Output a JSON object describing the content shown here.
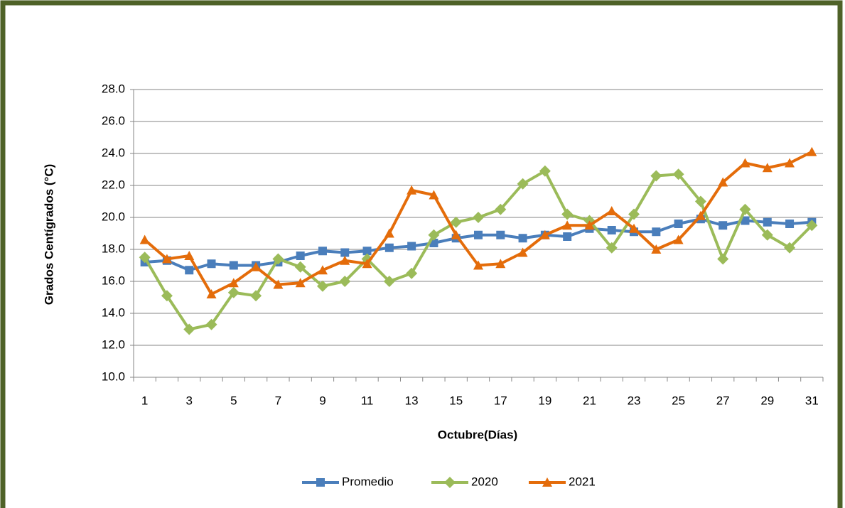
{
  "chart_data": {
    "type": "line",
    "x_label": "Octubre(Días)",
    "y_label": "Grados Centígrados  (°C)",
    "categories": [
      1,
      null,
      3,
      null,
      5,
      null,
      7,
      null,
      9,
      null,
      11,
      null,
      13,
      null,
      15,
      null,
      17,
      null,
      19,
      null,
      21,
      null,
      23,
      null,
      25,
      null,
      27,
      null,
      29,
      null,
      31
    ],
    "ylim": [
      10,
      28
    ],
    "yticks": [
      {
        "value": 10,
        "label": "10.0"
      },
      {
        "value": 12,
        "label": "12.0"
      },
      {
        "value": 14,
        "label": "14.0"
      },
      {
        "value": 16,
        "label": "16.0"
      },
      {
        "value": 18,
        "label": "18.0"
      },
      {
        "value": 20,
        "label": "20.0"
      },
      {
        "value": 22,
        "label": "22.0"
      },
      {
        "value": 24,
        "label": "24.0"
      },
      {
        "value": 26,
        "label": "26.0"
      },
      {
        "value": 28,
        "label": "28.0"
      }
    ],
    "grid": true,
    "legend": "bottom",
    "series": [
      {
        "name": "Promedio",
        "color": "#4a7ebb",
        "marker": "square",
        "values": [
          17.2,
          17.3,
          16.7,
          17.1,
          17.0,
          17.0,
          17.2,
          17.6,
          17.9,
          17.8,
          17.9,
          18.1,
          18.2,
          18.4,
          18.7,
          18.9,
          18.9,
          18.7,
          18.9,
          18.8,
          19.3,
          19.2,
          19.1,
          19.1,
          19.6,
          19.9,
          19.5,
          19.8,
          19.7,
          19.6,
          19.7
        ]
      },
      {
        "name": "2020",
        "color": "#9bbb59",
        "marker": "diamond",
        "values": [
          17.5,
          15.1,
          13.0,
          13.3,
          15.3,
          15.1,
          17.4,
          16.9,
          15.7,
          16.0,
          17.4,
          16.0,
          16.5,
          18.9,
          19.7,
          20.0,
          20.5,
          22.1,
          22.9,
          20.2,
          19.8,
          18.1,
          20.2,
          22.6,
          22.7,
          21.0,
          17.4,
          20.5,
          18.9,
          18.1,
          19.5
        ]
      },
      {
        "name": "2021",
        "color": "#e46c0a",
        "marker": "triangle",
        "values": [
          18.6,
          17.4,
          17.6,
          15.2,
          15.9,
          16.9,
          15.8,
          15.9,
          16.7,
          17.3,
          17.1,
          19.0,
          21.7,
          21.4,
          18.9,
          17.0,
          17.1,
          17.8,
          18.9,
          19.5,
          19.5,
          20.4,
          19.3,
          18.0,
          18.6,
          20.1,
          22.2,
          23.4,
          23.1,
          23.4,
          24.1
        ]
      }
    ]
  }
}
